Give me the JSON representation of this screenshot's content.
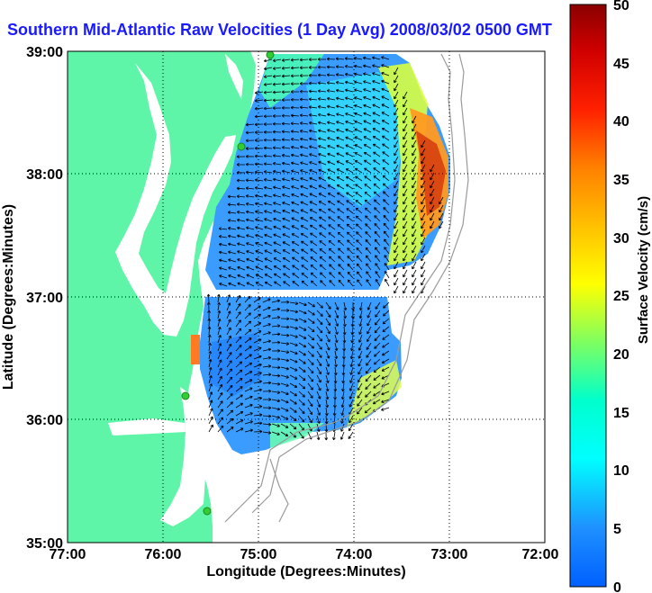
{
  "title": "Southern Mid-Atlantic Raw Velocities (1 Day Avg) 2008/03/02 0500 GMT",
  "x_axis": {
    "label": "Longitude (Degrees:Minutes)",
    "ticks": [
      "77:00",
      "76:00",
      "75:00",
      "74:00",
      "73:00",
      "72:00"
    ]
  },
  "y_axis": {
    "label": "Latitude (Degrees:Minutes)",
    "ticks": [
      "39:00",
      "38:00",
      "37:00",
      "36:00",
      "35:00"
    ]
  },
  "colorbar": {
    "label": "Surface Velocity (cm/s)",
    "ticks": [
      "50",
      "45",
      "40",
      "35",
      "30",
      "25",
      "20",
      "15",
      "10",
      "5",
      "0"
    ],
    "range": [
      0,
      50
    ],
    "colormap": "jet"
  },
  "map": {
    "extent_lon": [
      -77,
      -72
    ],
    "extent_lat": [
      35,
      39
    ],
    "land_color": "#5ef5a8",
    "ocean_color": "#ffffff",
    "grid": "dotted",
    "bathymetry_color": "#9a9a9a",
    "arrow_color": "#000000",
    "hf_radar_station_color": "#33cc33"
  }
}
